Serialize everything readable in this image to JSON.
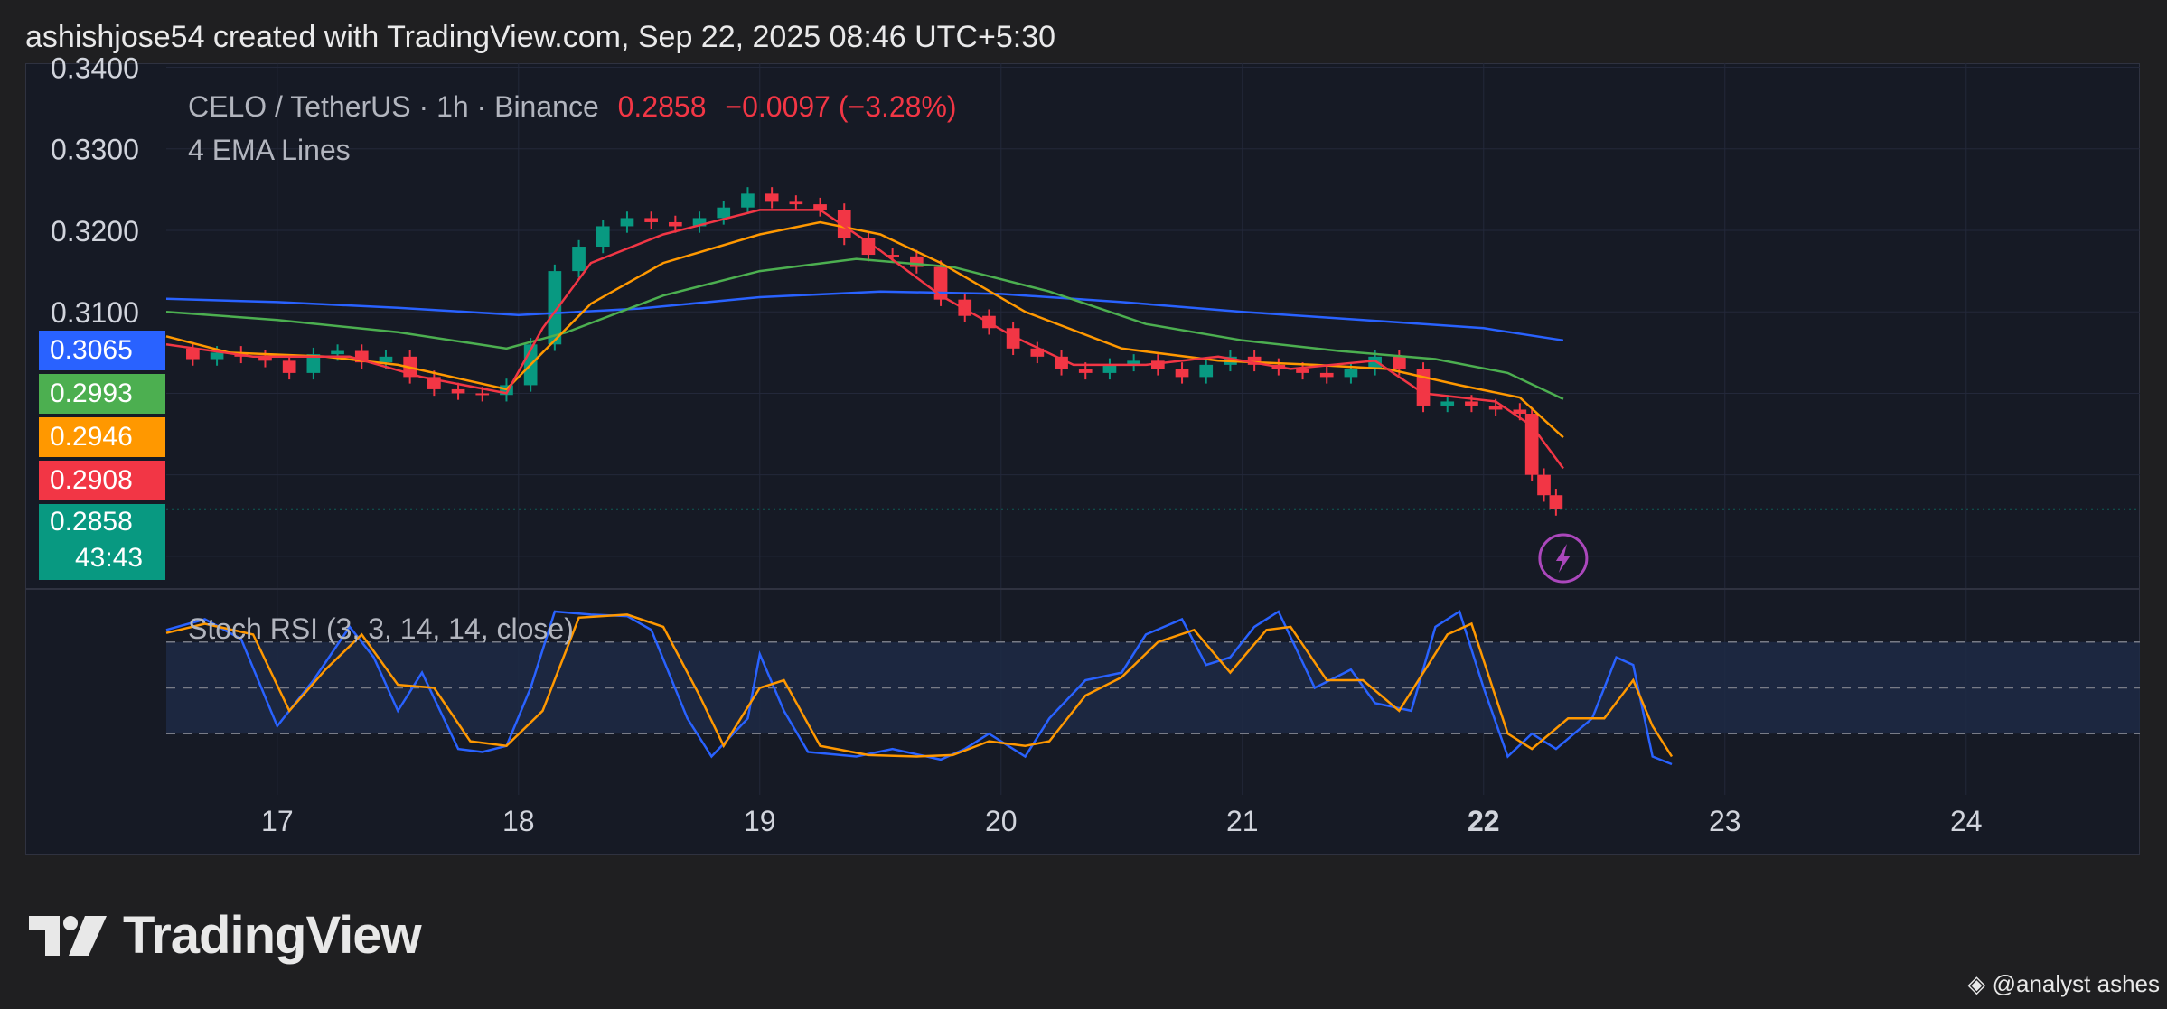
{
  "header": "ashishjose54 created with TradingView.com, Sep 22, 2025 08:46 UTC+5:30",
  "legend": {
    "symbol": "CELO / TetherUS · 1h · Binance",
    "price": "0.2858",
    "change": "−0.0097 (−3.28%)",
    "indicator": "4 EMA Lines"
  },
  "stoch_label": "Stoch RSI (3, 3, 14, 14, close)",
  "price_tags": [
    {
      "value": "0.3065",
      "color": "#2962ff"
    },
    {
      "value": "0.2993",
      "color": "#4caf50"
    },
    {
      "value": "0.2946",
      "color": "#ff9800"
    },
    {
      "value": "0.2908",
      "color": "#f23645"
    },
    {
      "value": "0.2858",
      "color": "#089981",
      "countdown": "43:43"
    }
  ],
  "brand": "TradingView",
  "watermark": "@analyst ashes",
  "colors": {
    "up": "#089981",
    "down": "#f23645",
    "ema_blue": "#2962ff",
    "ema_green": "#4caf50",
    "ema_orange": "#ff9800",
    "ema_red": "#f23645",
    "stoch_k": "#2962ff",
    "stoch_d": "#ff9800"
  },
  "chart_data": [
    {
      "type": "candlestick",
      "title": "CELO / TetherUS · 1h · Binance",
      "ylim": [
        0.276,
        0.3405
      ],
      "y_ticks": [
        "0.3400",
        "0.3300",
        "0.3200",
        "0.3100"
      ],
      "x_ticks": [
        "17",
        "18",
        "19",
        "20",
        "21",
        "22",
        "23",
        "24"
      ],
      "x_tick_values": [
        17,
        18,
        19,
        20,
        21,
        22,
        23,
        24
      ],
      "xlim": [
        16.54,
        24.72
      ],
      "grid": true,
      "last_price": 0.2858,
      "closes": [
        [
          16.55,
          0.3055
        ],
        [
          16.65,
          0.3042
        ],
        [
          16.75,
          0.305
        ],
        [
          16.85,
          0.3045
        ],
        [
          16.95,
          0.304
        ],
        [
          17.05,
          0.3025
        ],
        [
          17.15,
          0.3048
        ],
        [
          17.25,
          0.3052
        ],
        [
          17.35,
          0.3038
        ],
        [
          17.45,
          0.3045
        ],
        [
          17.55,
          0.302
        ],
        [
          17.65,
          0.3005
        ],
        [
          17.75,
          0.3
        ],
        [
          17.85,
          0.2998
        ],
        [
          17.95,
          0.301
        ],
        [
          18.05,
          0.306
        ],
        [
          18.15,
          0.315
        ],
        [
          18.25,
          0.318
        ],
        [
          18.35,
          0.3205
        ],
        [
          18.45,
          0.3215
        ],
        [
          18.55,
          0.321
        ],
        [
          18.65,
          0.3205
        ],
        [
          18.75,
          0.3215
        ],
        [
          18.85,
          0.3228
        ],
        [
          18.95,
          0.3245
        ],
        [
          19.05,
          0.3235
        ],
        [
          19.15,
          0.3232
        ],
        [
          19.25,
          0.3225
        ],
        [
          19.35,
          0.319
        ],
        [
          19.45,
          0.317
        ],
        [
          19.55,
          0.3168
        ],
        [
          19.65,
          0.3155
        ],
        [
          19.75,
          0.3115
        ],
        [
          19.85,
          0.3095
        ],
        [
          19.95,
          0.308
        ],
        [
          20.05,
          0.3055
        ],
        [
          20.15,
          0.3045
        ],
        [
          20.25,
          0.303
        ],
        [
          20.35,
          0.3025
        ],
        [
          20.45,
          0.3035
        ],
        [
          20.55,
          0.304
        ],
        [
          20.65,
          0.303
        ],
        [
          20.75,
          0.302
        ],
        [
          20.85,
          0.3035
        ],
        [
          20.95,
          0.3045
        ],
        [
          21.05,
          0.3035
        ],
        [
          21.15,
          0.303
        ],
        [
          21.25,
          0.3025
        ],
        [
          21.35,
          0.302
        ],
        [
          21.45,
          0.303
        ],
        [
          21.55,
          0.3045
        ],
        [
          21.65,
          0.303
        ],
        [
          21.75,
          0.2985
        ],
        [
          21.85,
          0.299
        ],
        [
          21.95,
          0.2985
        ],
        [
          22.05,
          0.298
        ],
        [
          22.15,
          0.2975
        ],
        [
          22.2,
          0.29
        ],
        [
          22.25,
          0.2875
        ],
        [
          22.3,
          0.2858
        ]
      ],
      "series": [
        {
          "name": "EMA blue",
          "color": "#2962ff",
          "last": 0.3065,
          "points": [
            [
              16.54,
              0.3116
            ],
            [
              17.0,
              0.3112
            ],
            [
              17.5,
              0.3105
            ],
            [
              18.0,
              0.3096
            ],
            [
              18.5,
              0.3104
            ],
            [
              19.0,
              0.3118
            ],
            [
              19.5,
              0.3125
            ],
            [
              20.0,
              0.3122
            ],
            [
              20.5,
              0.3112
            ],
            [
              21.0,
              0.31
            ],
            [
              21.5,
              0.309
            ],
            [
              22.0,
              0.308
            ],
            [
              22.33,
              0.3065
            ]
          ]
        },
        {
          "name": "EMA green",
          "color": "#4caf50",
          "last": 0.2993,
          "points": [
            [
              16.54,
              0.31
            ],
            [
              17.0,
              0.309
            ],
            [
              17.5,
              0.3075
            ],
            [
              17.95,
              0.3055
            ],
            [
              18.2,
              0.3075
            ],
            [
              18.6,
              0.312
            ],
            [
              19.0,
              0.315
            ],
            [
              19.4,
              0.3165
            ],
            [
              19.8,
              0.3155
            ],
            [
              20.2,
              0.3125
            ],
            [
              20.6,
              0.3085
            ],
            [
              21.0,
              0.3065
            ],
            [
              21.4,
              0.3052
            ],
            [
              21.8,
              0.3042
            ],
            [
              22.1,
              0.3025
            ],
            [
              22.33,
              0.2993
            ]
          ]
        },
        {
          "name": "EMA orange",
          "color": "#ff9800",
          "last": 0.2946,
          "points": [
            [
              16.54,
              0.307
            ],
            [
              16.8,
              0.305
            ],
            [
              17.2,
              0.3045
            ],
            [
              17.5,
              0.3035
            ],
            [
              17.95,
              0.3005
            ],
            [
              18.1,
              0.305
            ],
            [
              18.3,
              0.311
            ],
            [
              18.6,
              0.316
            ],
            [
              19.0,
              0.3195
            ],
            [
              19.25,
              0.321
            ],
            [
              19.5,
              0.3195
            ],
            [
              19.75,
              0.316
            ],
            [
              20.1,
              0.31
            ],
            [
              20.5,
              0.3055
            ],
            [
              20.9,
              0.304
            ],
            [
              21.3,
              0.3035
            ],
            [
              21.6,
              0.303
            ],
            [
              21.9,
              0.301
            ],
            [
              22.15,
              0.2995
            ],
            [
              22.33,
              0.2946
            ]
          ]
        },
        {
          "name": "EMA red",
          "color": "#f23645",
          "last": 0.2908,
          "points": [
            [
              16.54,
              0.306
            ],
            [
              16.9,
              0.3045
            ],
            [
              17.3,
              0.3045
            ],
            [
              17.6,
              0.302
            ],
            [
              17.95,
              0.3
            ],
            [
              18.1,
              0.308
            ],
            [
              18.3,
              0.316
            ],
            [
              18.6,
              0.3195
            ],
            [
              19.0,
              0.3225
            ],
            [
              19.25,
              0.3225
            ],
            [
              19.5,
              0.3175
            ],
            [
              19.75,
              0.312
            ],
            [
              20.05,
              0.307
            ],
            [
              20.3,
              0.3035
            ],
            [
              20.6,
              0.3035
            ],
            [
              20.9,
              0.3045
            ],
            [
              21.2,
              0.303
            ],
            [
              21.55,
              0.304
            ],
            [
              21.75,
              0.3
            ],
            [
              22.05,
              0.299
            ],
            [
              22.2,
              0.296
            ],
            [
              22.33,
              0.2908
            ]
          ]
        }
      ]
    },
    {
      "type": "line",
      "title": "Stoch RSI (3, 3, 14, 14, close)",
      "ylim": [
        0,
        100
      ],
      "bands": [
        80,
        50,
        20
      ],
      "series": [
        {
          "name": "%K",
          "color": "#2962ff",
          "points": [
            [
              16.54,
              88
            ],
            [
              16.7,
              95
            ],
            [
              16.85,
              82
            ],
            [
              17.0,
              25
            ],
            [
              17.15,
              55
            ],
            [
              17.3,
              90
            ],
            [
              17.4,
              70
            ],
            [
              17.5,
              35
            ],
            [
              17.6,
              60
            ],
            [
              17.75,
              10
            ],
            [
              17.85,
              8
            ],
            [
              17.95,
              12
            ],
            [
              18.05,
              50
            ],
            [
              18.15,
              100
            ],
            [
              18.3,
              98
            ],
            [
              18.45,
              97
            ],
            [
              18.55,
              88
            ],
            [
              18.7,
              30
            ],
            [
              18.8,
              5
            ],
            [
              18.95,
              30
            ],
            [
              19.0,
              72
            ],
            [
              19.1,
              35
            ],
            [
              19.2,
              8
            ],
            [
              19.4,
              5
            ],
            [
              19.55,
              10
            ],
            [
              19.75,
              3
            ],
            [
              19.85,
              10
            ],
            [
              19.95,
              20
            ],
            [
              20.1,
              5
            ],
            [
              20.2,
              30
            ],
            [
              20.35,
              55
            ],
            [
              20.5,
              60
            ],
            [
              20.6,
              85
            ],
            [
              20.75,
              95
            ],
            [
              20.85,
              65
            ],
            [
              20.95,
              70
            ],
            [
              21.05,
              90
            ],
            [
              21.15,
              100
            ],
            [
              21.3,
              50
            ],
            [
              21.45,
              62
            ],
            [
              21.55,
              40
            ],
            [
              21.7,
              35
            ],
            [
              21.8,
              90
            ],
            [
              21.9,
              100
            ],
            [
              22.0,
              50
            ],
            [
              22.1,
              5
            ],
            [
              22.2,
              20
            ],
            [
              22.3,
              10
            ],
            [
              22.45,
              30
            ],
            [
              22.55,
              70
            ],
            [
              22.62,
              65
            ],
            [
              22.7,
              5
            ],
            [
              22.78,
              0
            ]
          ]
        },
        {
          "name": "%D",
          "color": "#ff9800",
          "points": [
            [
              16.54,
              86
            ],
            [
              16.7,
              92
            ],
            [
              16.9,
              85
            ],
            [
              17.05,
              35
            ],
            [
              17.2,
              62
            ],
            [
              17.35,
              85
            ],
            [
              17.5,
              52
            ],
            [
              17.65,
              50
            ],
            [
              17.8,
              15
            ],
            [
              17.95,
              12
            ],
            [
              18.1,
              35
            ],
            [
              18.25,
              96
            ],
            [
              18.45,
              98
            ],
            [
              18.6,
              90
            ],
            [
              18.75,
              45
            ],
            [
              18.85,
              12
            ],
            [
              19.0,
              50
            ],
            [
              19.1,
              55
            ],
            [
              19.25,
              12
            ],
            [
              19.45,
              6
            ],
            [
              19.65,
              5
            ],
            [
              19.8,
              6
            ],
            [
              19.95,
              15
            ],
            [
              20.1,
              12
            ],
            [
              20.2,
              15
            ],
            [
              20.35,
              45
            ],
            [
              20.5,
              57
            ],
            [
              20.65,
              80
            ],
            [
              20.8,
              88
            ],
            [
              20.95,
              60
            ],
            [
              21.1,
              88
            ],
            [
              21.2,
              90
            ],
            [
              21.35,
              55
            ],
            [
              21.5,
              55
            ],
            [
              21.65,
              35
            ],
            [
              21.85,
              85
            ],
            [
              21.95,
              92
            ],
            [
              22.1,
              20
            ],
            [
              22.2,
              10
            ],
            [
              22.35,
              30
            ],
            [
              22.5,
              30
            ],
            [
              22.62,
              55
            ],
            [
              22.7,
              25
            ],
            [
              22.78,
              5
            ]
          ]
        }
      ]
    }
  ]
}
